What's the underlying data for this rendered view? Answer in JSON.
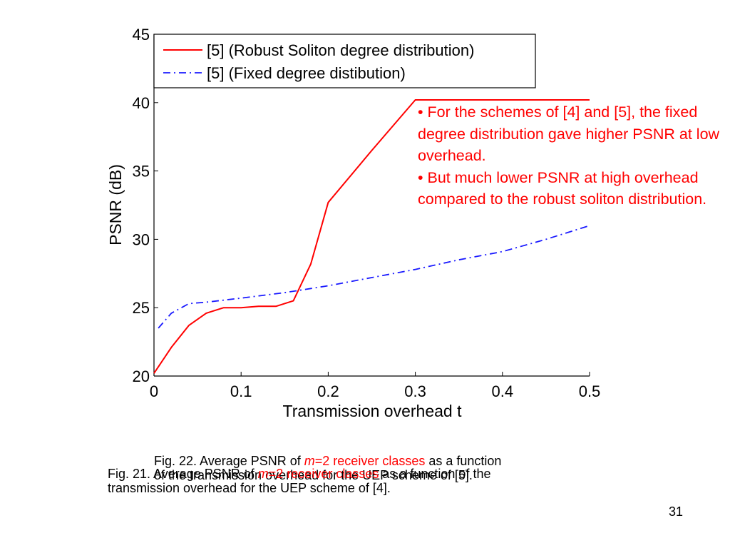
{
  "chart_data": {
    "type": "line",
    "xlabel": "Transmission overhead t",
    "ylabel": "PSNR (dB)",
    "xlim": [
      0,
      0.5
    ],
    "ylim": [
      20,
      45
    ],
    "x_ticks": [
      0,
      0.1,
      0.2,
      0.3,
      0.4,
      0.5
    ],
    "x_tick_labels": [
      "0",
      "0.1",
      "0.2",
      "0.3",
      "0.4",
      "0.5"
    ],
    "y_ticks": [
      20,
      25,
      30,
      35,
      40,
      45
    ],
    "y_tick_labels": [
      "20",
      "25",
      "30",
      "35",
      "40",
      "45"
    ],
    "grid": false,
    "legend_position": "top",
    "series": [
      {
        "name": "[5] (Robust Soliton degree distribution)",
        "color": "#ff0000",
        "style": "solid",
        "x": [
          0,
          0.02,
          0.04,
          0.06,
          0.08,
          0.1,
          0.12,
          0.14,
          0.16,
          0.18,
          0.2,
          0.25,
          0.3,
          0.35,
          0.4,
          0.45,
          0.5
        ],
        "y": [
          20.2,
          22.1,
          23.7,
          24.6,
          25.0,
          25.0,
          25.1,
          25.1,
          25.5,
          28.2,
          32.7,
          36.5,
          40.2,
          40.2,
          40.2,
          40.2,
          40.2
        ]
      },
      {
        "name": "[5] (Fixed degree distibution)",
        "color": "#1a1aff",
        "style": "dashdot",
        "x": [
          0.005,
          0.02,
          0.04,
          0.06,
          0.1,
          0.15,
          0.2,
          0.25,
          0.3,
          0.35,
          0.4,
          0.45,
          0.5
        ],
        "y": [
          23.5,
          24.6,
          25.3,
          25.4,
          25.7,
          26.1,
          26.6,
          27.2,
          27.8,
          28.5,
          29.1,
          30.0,
          31.0
        ]
      }
    ]
  },
  "annotation": {
    "line1": "• For the schemes of [4] and [5], the fixed degree distribution gave higher PSNR at low overhead.",
    "line2": "• But much lower PSNR at high overhead compared to the robust soliton distribution."
  },
  "captions": {
    "fig22": {
      "prefix": "Fig. 22. Average PSNR of ",
      "m": "m",
      "highlight": "=2 receiver classes",
      "suffix": " as a function",
      "line2": "of the transmission overhead for the UEP scheme of [5]."
    },
    "fig21": {
      "prefix": "Fig. 21. Average PSNR of ",
      "m": "m",
      "highlight": "=2 receiver classes",
      "suffix": " as a function of the",
      "line2": "transmission overhead for the UEP scheme of [4]."
    }
  },
  "slide_number": "31"
}
